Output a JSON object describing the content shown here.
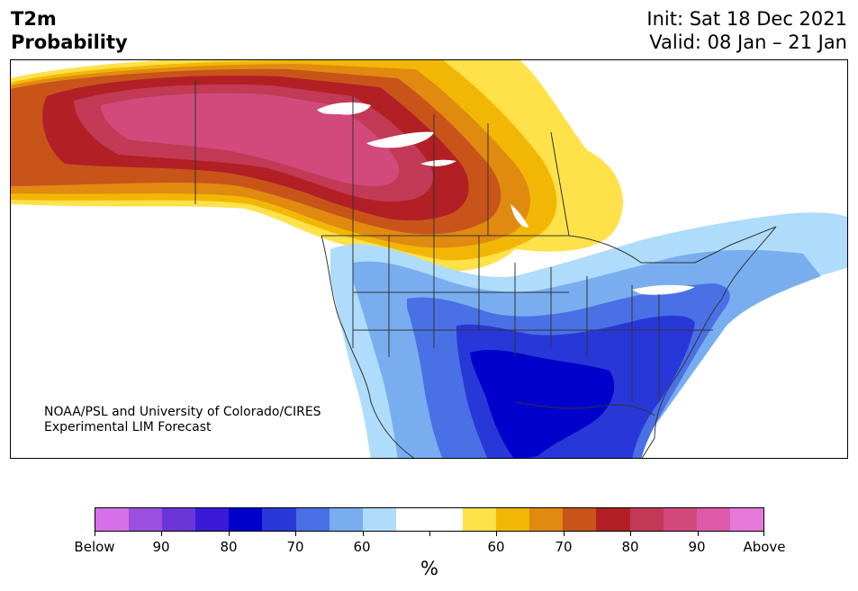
{
  "header": {
    "title_line1": "T2m",
    "title_line2": "Probability",
    "init": "Init: Sat 18 Dec 2021",
    "valid": "Valid: 08 Jan – 21 Jan"
  },
  "credit": {
    "line1": "NOAA/PSL and University of Colorado/CIRES",
    "line2": "Experimental LIM Forecast"
  },
  "colorbar": {
    "unit": "%",
    "tick_labels": [
      "Below",
      "90",
      "80",
      "70",
      "60",
      "",
      "60",
      "70",
      "80",
      "90",
      "Above"
    ],
    "colors": {
      "below_extreme": "#d670e8",
      "below_95": "#9b50e0",
      "below_90": "#6b35d8",
      "below_85": "#3a1ad8",
      "below_80": "#0000cc",
      "below_75": "#2838d8",
      "below_70": "#4a70e6",
      "below_65": "#78aef0",
      "below_60": "#aedcfa",
      "neutral": "#ffffff",
      "above_60": "#ffe14a",
      "above_65": "#f2b705",
      "above_70": "#e08a10",
      "above_75": "#c8541a",
      "above_80": "#b22025",
      "above_85": "#c23a55",
      "above_90": "#d24a7c",
      "above_95": "#de5aa8",
      "above_extreme": "#e678d8"
    }
  }
}
